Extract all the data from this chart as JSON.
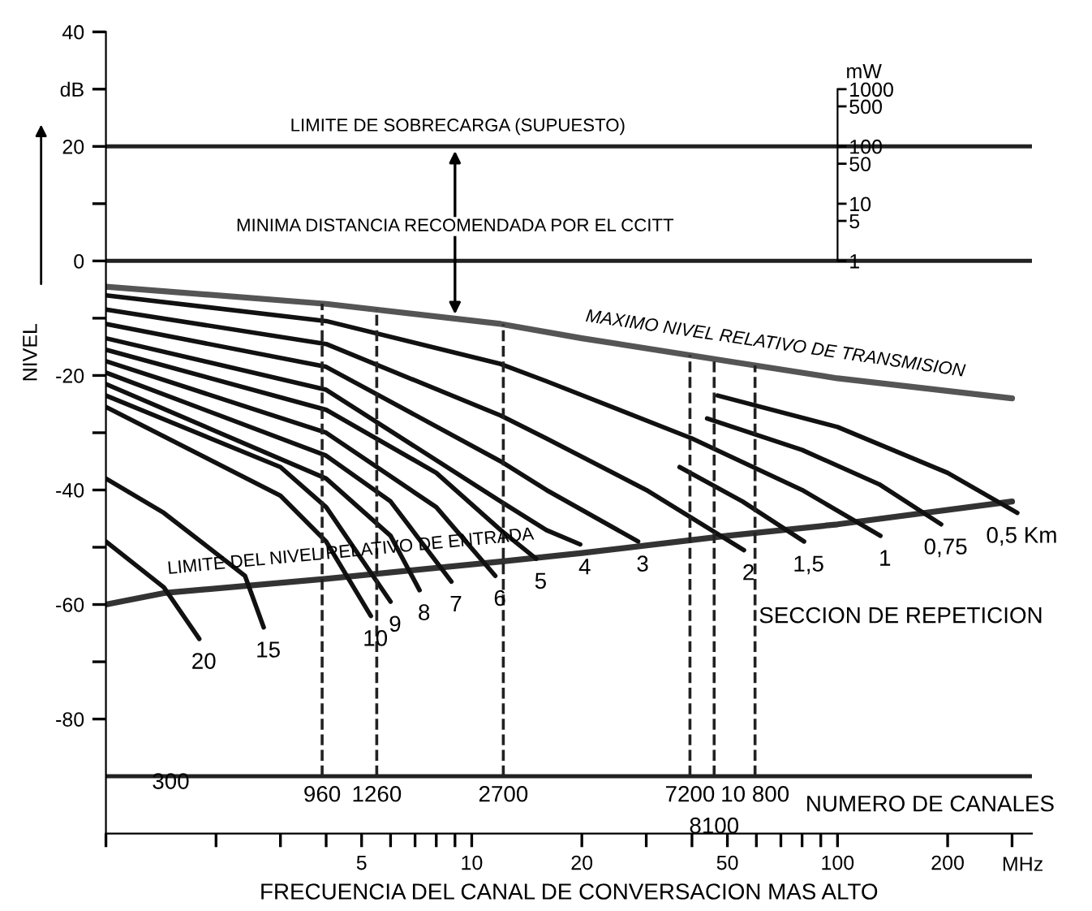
{
  "chart_data": [
    {
      "type": "line",
      "ylabel": "NIVEL",
      "xlabel": "FRECUENCIA DEL CANAL DE CONVERSACION MAS ALTO",
      "log": "x",
      "xlim": [
        1,
        340
      ],
      "xticks": [
        {
          "value": 1,
          "label": null
        },
        {
          "value": 2,
          "label": null
        },
        {
          "value": 3,
          "label": null
        },
        {
          "value": 4,
          "label": null
        },
        5,
        {
          "value": 6,
          "label": null
        },
        {
          "value": 7,
          "label": null
        },
        {
          "value": 8,
          "label": null
        },
        {
          "value": 9,
          "label": null
        },
        10,
        20,
        {
          "value": 30,
          "label": null
        },
        {
          "value": 40,
          "label": null
        },
        50,
        {
          "value": 60,
          "label": null
        },
        {
          "value": 70,
          "label": null
        },
        {
          "value": 80,
          "label": null
        },
        {
          "value": 90,
          "label": null
        },
        100,
        200,
        {
          "value": 300,
          "label": null
        }
      ],
      "ylim": [
        -100,
        40
      ],
      "yticks": [
        40,
        {
          "value": 30,
          "label": "dB"
        },
        20,
        {
          "value": 10,
          "label": null
        },
        0,
        {
          "value": -10,
          "label": null
        },
        -20,
        {
          "value": -30,
          "label": null
        },
        -40,
        {
          "value": -50,
          "label": null
        },
        -60,
        {
          "value": -70,
          "label": null
        },
        -80
      ],
      "grid": false,
      "legend": false,
      "marker": "none",
      "line_style": "solid",
      "series": [
        {
          "name": "MAXIMO NIVEL RELATIVO DE TRANSMISION",
          "color": "#555555",
          "x": [
            1,
            4,
            12,
            20,
            50,
            100,
            300
          ],
          "values": [
            -4.5,
            -7.5,
            -11,
            -13.5,
            -17.5,
            -20.5,
            -24
          ]
        },
        {
          "name": "LIMITE DEL NIVEL RELATIVO DE ENTRADA",
          "color": "#333333",
          "x": [
            1,
            1.44,
            4,
            12,
            20,
            50,
            100,
            300
          ],
          "values": [
            -60,
            -58,
            -55.5,
            -52.5,
            -51,
            -48,
            -46,
            -42
          ]
        },
        {
          "name": "20",
          "color": "#111111",
          "x": [
            1,
            1.44,
            1.8
          ],
          "values": [
            -49,
            -57,
            -66
          ]
        },
        {
          "name": "15",
          "color": "#111111",
          "x": [
            1,
            1.44,
            2.4,
            2.7
          ],
          "values": [
            -38,
            -44,
            -55,
            -64
          ]
        },
        {
          "name": "10",
          "color": "#111111",
          "x": [
            1,
            3,
            4,
            5.3
          ],
          "values": [
            -25.5,
            -41,
            -49,
            -62
          ]
        },
        {
          "name": "9",
          "color": "#111111",
          "x": [
            1,
            3,
            4,
            6
          ],
          "values": [
            -23.5,
            -36,
            -43,
            -59.5
          ]
        },
        {
          "name": "8",
          "color": "#111111",
          "x": [
            1,
            4,
            6,
            7.2
          ],
          "values": [
            -21.5,
            -38,
            -48,
            -57.5
          ]
        },
        {
          "name": "7",
          "color": "#111111",
          "x": [
            1,
            4,
            6,
            8.8
          ],
          "values": [
            -19.5,
            -34,
            -42,
            -56
          ]
        },
        {
          "name": "6",
          "color": "#111111",
          "x": [
            1,
            4,
            8,
            11.6
          ],
          "values": [
            -17.5,
            -30,
            -43,
            -55
          ]
        },
        {
          "name": "5",
          "color": "#111111",
          "x": [
            1,
            4,
            8,
            12,
            15
          ],
          "values": [
            -15.5,
            -26,
            -37,
            -47,
            -52
          ]
        },
        {
          "name": "4",
          "color": "#111111",
          "x": [
            1,
            4,
            12,
            16,
            19.8
          ],
          "values": [
            -13.5,
            -22.5,
            -42,
            -47,
            -49.5
          ]
        },
        {
          "name": "3",
          "color": "#111111",
          "x": [
            1,
            4,
            12,
            16,
            28.5
          ],
          "values": [
            -11,
            -18.5,
            -35,
            -40,
            -49
          ]
        },
        {
          "name": "2",
          "color": "#111111",
          "x": [
            1,
            4,
            12,
            16,
            30,
            55.5
          ],
          "values": [
            -8.5,
            -14.5,
            -27,
            -31,
            -40,
            -50.5
          ]
        },
        {
          "name": "1,5",
          "color": "#111111",
          "x": [
            37,
            55,
            81
          ],
          "values": [
            -36,
            -42,
            -49
          ]
        },
        {
          "name": "1",
          "color": "#111111",
          "x": [
            1,
            4,
            12,
            16,
            40,
            80,
            131
          ],
          "values": [
            -6,
            -10.5,
            -18,
            -21,
            -31,
            -40,
            -48
          ]
        },
        {
          "name": "0,75",
          "color": "#111111",
          "x": [
            44,
            80,
            130,
            192
          ],
          "values": [
            -27.5,
            -33,
            -39,
            -46
          ]
        },
        {
          "name": "0,5 Km",
          "color": "#111111",
          "x": [
            47,
            100,
            200,
            310
          ],
          "values": [
            -23.5,
            -29,
            -37,
            -44
          ]
        }
      ],
      "ref_lines": [
        {
          "axis": "y",
          "value": 20,
          "label": "LIMITE DE SOBRECARGA (SUPUESTO)",
          "color": "#222222"
        },
        {
          "axis": "y",
          "value": 0,
          "color": "#222222"
        },
        {
          "axis": "y",
          "value": -90,
          "color": "#222222"
        },
        {
          "axis": "x",
          "value": 3.9,
          "line_style": "dashed",
          "color": "#222222"
        },
        {
          "axis": "x",
          "value": 5.5,
          "line_style": "dashed",
          "color": "#222222"
        },
        {
          "axis": "x",
          "value": 12.2,
          "line_style": "dashed",
          "color": "#222222"
        },
        {
          "axis": "x",
          "value": 39.5,
          "line_style": "dashed",
          "color": "#222222"
        },
        {
          "axis": "x",
          "value": 46,
          "line_style": "dashed",
          "color": "#222222"
        },
        {
          "axis": "x",
          "value": 59.5,
          "line_style": "dashed",
          "color": "#222222"
        }
      ],
      "annotations": [
        "MINIMA DISTANCIA RECOMENDADA POR EL CCITT",
        "SECCION DE REPETICION",
        "MHz",
        "NUMERO DE CANALES",
        "300",
        "960",
        "1260",
        "2700",
        "7200",
        "8100",
        "10 800"
      ]
    },
    {
      "type": "other",
      "ylabel": "mW",
      "annotations": [
        "1",
        "5",
        "10",
        "50",
        "100",
        "500",
        "1000"
      ]
    }
  ]
}
